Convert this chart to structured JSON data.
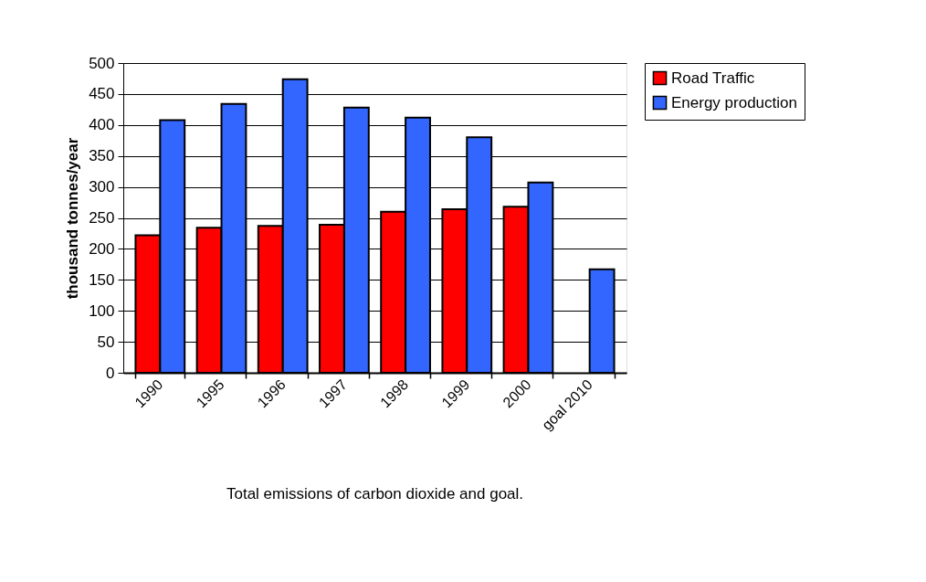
{
  "chart_data": {
    "type": "bar",
    "title": "Total emissions of carbon dioxide and goal.",
    "ylabel": "thousand tonnes/year",
    "categories": [
      "1990",
      "1995",
      "1996",
      "1997",
      "1998",
      "1999",
      "2000",
      "goal 2010"
    ],
    "series": [
      {
        "name": "Road Traffic",
        "color": "#ff0000",
        "values": [
          222,
          234,
          237,
          239,
          260,
          264,
          268,
          null
        ]
      },
      {
        "name": "Energy production",
        "color": "#3366ff",
        "values": [
          408,
          434,
          474,
          428,
          412,
          380,
          307,
          167
        ]
      }
    ],
    "ylim": [
      0,
      500
    ],
    "yticks": [
      0,
      50,
      100,
      150,
      200,
      250,
      300,
      350,
      400,
      450,
      500
    ],
    "grid": "y",
    "legend": "right"
  }
}
